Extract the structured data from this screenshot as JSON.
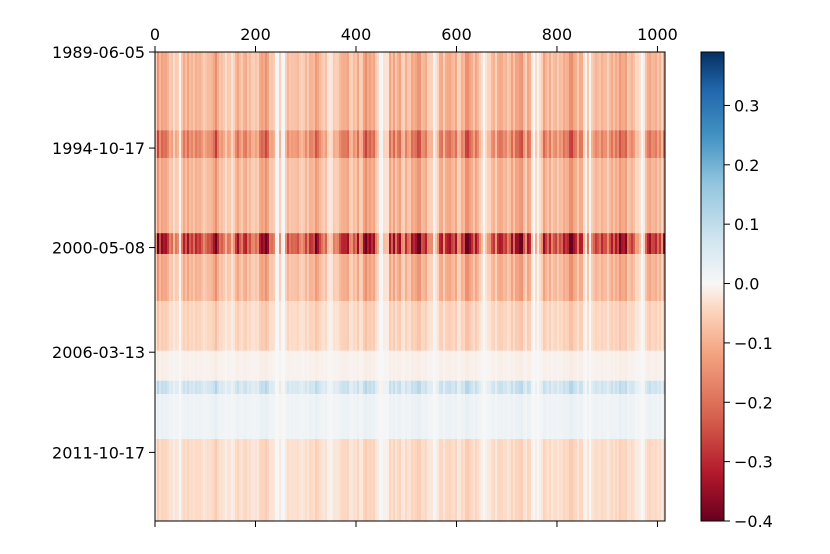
{
  "chart_data": {
    "type": "heatmap",
    "title": "",
    "xlabel": "",
    "ylabel": "",
    "x_axis_position": "top",
    "xlim": [
      0,
      1015
    ],
    "xticks": [
      0,
      200,
      400,
      600,
      800,
      1000
    ],
    "xtick_labels": [
      "0",
      "200",
      "400",
      "600",
      "800",
      "1000"
    ],
    "ylim": [
      "1989-06-05",
      "2015-08-17"
    ],
    "yticks": [
      "1989-06-05",
      "1994-10-17",
      "2000-05-08",
      "2006-03-13",
      "2011-10-17"
    ],
    "ytick_labels": [
      "1989-06-05",
      "1994-10-17",
      "2000-05-08",
      "2006-03-13",
      "2011-10-17"
    ],
    "colormap": "RdBu",
    "colorbar": {
      "range": [
        -0.4,
        0.39
      ],
      "ticks": [
        0.3,
        0.2,
        0.1,
        0.0,
        -0.1,
        -0.2,
        -0.3,
        -0.4
      ],
      "tick_labels": [
        "0.3",
        "0.2",
        "0.1",
        "0.0",
        "−0.1",
        "−0.2",
        "−0.3",
        "−0.4"
      ]
    },
    "row_bands": [
      {
        "from": "1989-06-05",
        "to": "1993-10-18",
        "value": -0.1
      },
      {
        "from": "1993-10-18",
        "to": "1995-05-08",
        "value": -0.18
      },
      {
        "from": "1995-05-08",
        "to": "1999-07-19",
        "value": -0.1
      },
      {
        "from": "1999-07-19",
        "to": "2000-09-18",
        "value": -0.3
      },
      {
        "from": "2000-09-18",
        "to": "2003-05-05",
        "value": -0.1
      },
      {
        "from": "2003-05-05",
        "to": "2006-02-13",
        "value": -0.05
      },
      {
        "from": "2006-02-13",
        "to": "2007-10-15",
        "value": -0.01
      },
      {
        "from": "2007-10-15",
        "to": "2008-07-14",
        "value": 0.08
      },
      {
        "from": "2008-07-14",
        "to": "2011-01-17",
        "value": 0.02
      },
      {
        "from": "2011-01-17",
        "to": "2015-08-17",
        "value": -0.04
      }
    ],
    "column_periodicity": 102
  },
  "colors": {
    "axis": "#000000",
    "background": "#ffffff"
  }
}
